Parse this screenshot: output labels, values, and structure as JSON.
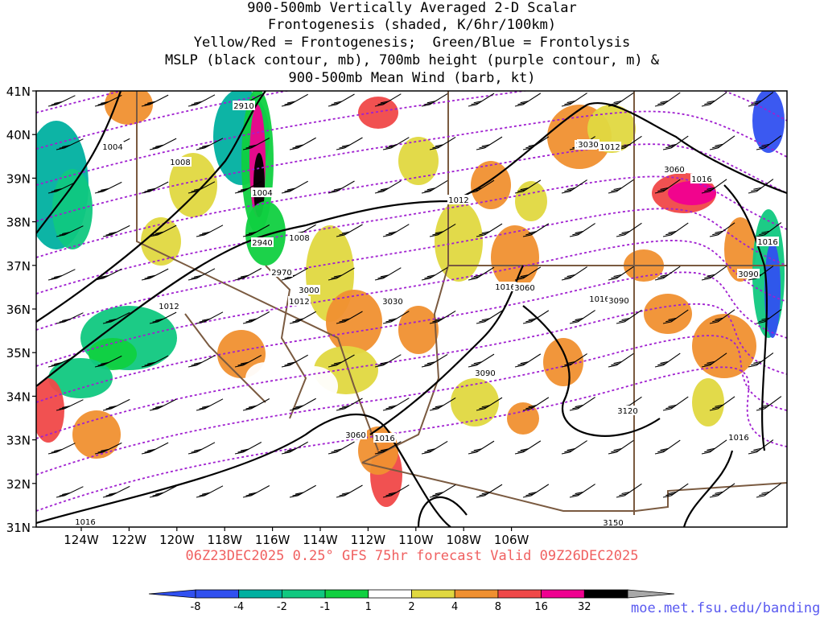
{
  "title": {
    "lines": [
      "900-500mb Vertically Averaged 2-D Scalar",
      "Frontogenesis (shaded, K/6hr/100km)",
      "Yellow/Red = Frontogenesis;  Green/Blue = Frontolysis",
      "MSLP (black contour, mb), 700mb height (purple contour, m) &",
      "900-500mb Mean Wind (barb, kt)"
    ]
  },
  "footer": {
    "run_info": "06Z23DEC2025 0.25° GFS 75hr forecast Valid 09Z26DEC2025",
    "url": "moe.met.fsu.edu/banding"
  },
  "map": {
    "lat_labels": [
      "41N",
      "40N",
      "39N",
      "38N",
      "37N",
      "36N",
      "35N",
      "34N",
      "33N",
      "32N",
      "31N"
    ],
    "lon_labels": [
      "124W",
      "122W",
      "120W",
      "118W",
      "116W",
      "114W",
      "112W",
      "110W",
      "108W",
      "106W"
    ],
    "mslp_labels": [
      "1004",
      "1008",
      "1004",
      "1008",
      "1012",
      "1012",
      "1012",
      "1012",
      "1012",
      "1016",
      "1016",
      "1016",
      "1016",
      "1016",
      "1016",
      "1016"
    ],
    "height_labels": [
      "2910",
      "2940",
      "2970",
      "3000",
      "3030",
      "3030",
      "3060",
      "3060",
      "3090",
      "3090",
      "3090",
      "3060",
      "3120",
      "3150"
    ],
    "colors": {
      "mslp": "#000000",
      "height": "#a020d0",
      "borders": "#7a5a40",
      "barbs": "#000000"
    }
  },
  "colorbar": {
    "labels": [
      "-8",
      "-4",
      "-2",
      "-1",
      "1",
      "2",
      "4",
      "8",
      "16",
      "32"
    ],
    "colors": [
      "#3050f0",
      "#00b0a0",
      "#10c880",
      "#10d040",
      "#ffffff",
      "#e0d840",
      "#f09030",
      "#f04848",
      "#f00090",
      "#000000"
    ],
    "under_color": "#3050f0",
    "over_color": "#a8a8a8"
  }
}
